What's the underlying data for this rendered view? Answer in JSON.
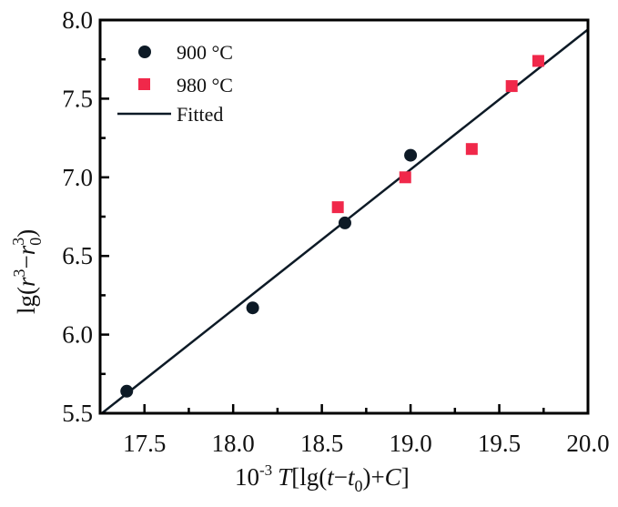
{
  "chart_data": {
    "type": "scatter",
    "title": "",
    "xlabel": "10-3 T[lg(t−t0)+C]",
    "ylabel": "lg(r3−r03)",
    "xlabel_parts": {
      "base": "10",
      "exp": "-3",
      "var": "T",
      "rest1": "[lg(",
      "t1": "t",
      "minus": "−",
      "t2": "t",
      "sub": "0",
      "rest2": ")+",
      "C": "C",
      "close": "]"
    },
    "ylabel_parts": {
      "pre": "lg(",
      "r1": "r",
      "exp1": "3",
      "minus": "−",
      "r2": "r",
      "sub": "0",
      "exp2": "3",
      "close": ")"
    },
    "xlim": [
      17.25,
      20.0
    ],
    "ylim": [
      5.5,
      8.0
    ],
    "x_ticks": [
      "17.5",
      "18.0",
      "18.5",
      "19.0",
      "19.5",
      "20.0"
    ],
    "y_ticks": [
      "5.5",
      "6.0",
      "6.5",
      "7.0",
      "7.5",
      "8.0"
    ],
    "grid": false,
    "legend_position": "top-left",
    "series": [
      {
        "name": "900 °C",
        "marker": "circle",
        "color": "#0d1a26",
        "points": [
          [
            17.4,
            5.64
          ],
          [
            18.11,
            6.17
          ],
          [
            18.63,
            6.71
          ],
          [
            19.0,
            7.14
          ]
        ]
      },
      {
        "name": "980 °C",
        "marker": "square",
        "color": "#f0284a",
        "points": [
          [
            18.59,
            6.81
          ],
          [
            18.97,
            7.0
          ],
          [
            19.345,
            7.18
          ],
          [
            19.57,
            7.58
          ],
          [
            19.72,
            7.74
          ]
        ]
      },
      {
        "name": "Fitted",
        "marker": "line",
        "color": "#0d1a26",
        "points": [
          [
            17.26,
            5.5
          ],
          [
            20.0,
            7.94
          ]
        ]
      }
    ]
  }
}
